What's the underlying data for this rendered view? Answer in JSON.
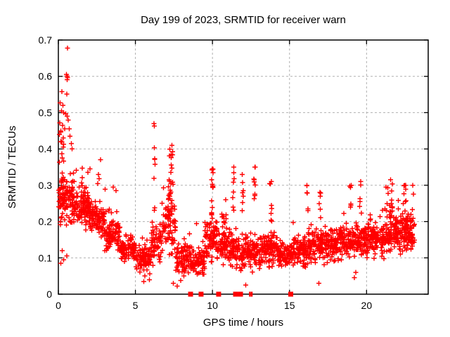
{
  "chart_data": {
    "type": "scatter",
    "title": "Day 199 of 2023, SRMTID for receiver warn",
    "xlabel": "GPS time / hours",
    "ylabel": "SRMTID / TECUs",
    "xlim": [
      0,
      24
    ],
    "ylim": [
      0,
      0.7
    ],
    "xticks": [
      0,
      5,
      10,
      15,
      20
    ],
    "yticks": [
      0,
      0.1,
      0.2,
      0.3,
      0.4,
      0.5,
      0.6,
      0.7
    ],
    "grid": true,
    "legend_position": "none",
    "marker": {
      "shape": "plus",
      "size": 7,
      "stroke_width": 1.4
    },
    "colors": {
      "marker": "#ff0000",
      "grid": "#b0b0b0",
      "axis": "#000000",
      "background": "#ffffff"
    },
    "seed": 42,
    "band_segments": [
      [
        0.0,
        0.5,
        55,
        0.26,
        0.1,
        0.15,
        0.1
      ],
      [
        0.5,
        1.0,
        55,
        0.25,
        0.1,
        0.12,
        0.08
      ],
      [
        1.0,
        2.0,
        110,
        0.24,
        0.07,
        0.11,
        0.07
      ],
      [
        2.0,
        3.0,
        100,
        0.21,
        0.06,
        0.12,
        0.06
      ],
      [
        3.0,
        4.0,
        95,
        0.165,
        0.055,
        0.1,
        0.05
      ],
      [
        4.0,
        5.0,
        90,
        0.125,
        0.045,
        0.06,
        0.04
      ],
      [
        5.0,
        6.0,
        85,
        0.095,
        0.05,
        0.05,
        0.04
      ],
      [
        6.0,
        6.7,
        60,
        0.14,
        0.09,
        0.05,
        0.05
      ],
      [
        6.7,
        7.6,
        80,
        0.19,
        0.11,
        0.04,
        0.05
      ],
      [
        7.6,
        8.5,
        80,
        0.1,
        0.055,
        0.05,
        0.04
      ],
      [
        8.5,
        9.5,
        90,
        0.09,
        0.05,
        0.08,
        0.04
      ],
      [
        9.5,
        10.3,
        75,
        0.15,
        0.08,
        0.05,
        0.05
      ],
      [
        10.3,
        11.3,
        95,
        0.13,
        0.07,
        0.05,
        0.04
      ],
      [
        11.3,
        12.3,
        95,
        0.12,
        0.065,
        0.07,
        0.05
      ],
      [
        12.3,
        13.2,
        85,
        0.115,
        0.06,
        0.07,
        0.05
      ],
      [
        13.2,
        14.2,
        95,
        0.125,
        0.065,
        0.06,
        0.05
      ],
      [
        14.2,
        15.2,
        90,
        0.11,
        0.05,
        0.05,
        0.04
      ],
      [
        15.2,
        16.2,
        90,
        0.12,
        0.055,
        0.06,
        0.05
      ],
      [
        16.2,
        17.2,
        95,
        0.135,
        0.065,
        0.06,
        0.05
      ],
      [
        17.2,
        18.2,
        95,
        0.135,
        0.065,
        0.06,
        0.05
      ],
      [
        18.2,
        19.2,
        95,
        0.145,
        0.065,
        0.07,
        0.05
      ],
      [
        19.2,
        20.2,
        95,
        0.15,
        0.065,
        0.07,
        0.05
      ],
      [
        20.2,
        21.2,
        100,
        0.155,
        0.065,
        0.07,
        0.06
      ],
      [
        21.2,
        22.2,
        105,
        0.165,
        0.07,
        0.08,
        0.07
      ],
      [
        22.2,
        23.1,
        100,
        0.165,
        0.07,
        0.08,
        0.06
      ]
    ],
    "spike_columns": [
      [
        0.25,
        0.1,
        0.3,
        0.45,
        12
      ],
      [
        6.25,
        0.05,
        0.23,
        0.47,
        9
      ],
      [
        7.3,
        0.15,
        0.26,
        0.41,
        22
      ],
      [
        10.0,
        0.06,
        0.2,
        0.345,
        14
      ],
      [
        10.75,
        0.15,
        0.18,
        0.26,
        10
      ],
      [
        11.35,
        0.05,
        0.22,
        0.35,
        8
      ],
      [
        11.95,
        0.05,
        0.22,
        0.33,
        7
      ],
      [
        12.73,
        0.05,
        0.22,
        0.35,
        9
      ],
      [
        13.78,
        0.07,
        0.2,
        0.31,
        8
      ],
      [
        16.15,
        0.05,
        0.2,
        0.3,
        6
      ],
      [
        16.95,
        0.08,
        0.19,
        0.28,
        6
      ],
      [
        18.95,
        0.06,
        0.21,
        0.3,
        6
      ],
      [
        19.6,
        0.05,
        0.21,
        0.31,
        5
      ],
      [
        21.5,
        0.25,
        0.21,
        0.315,
        16
      ],
      [
        22.4,
        0.2,
        0.2,
        0.3,
        12
      ],
      [
        22.95,
        0.1,
        0.2,
        0.3,
        6
      ]
    ],
    "extreme_points": [
      [
        0.59,
        0.678
      ],
      [
        0.52,
        0.605
      ],
      [
        0.56,
        0.6
      ],
      [
        0.6,
        0.597
      ],
      [
        0.57,
        0.591
      ],
      [
        0.23,
        0.558
      ],
      [
        0.55,
        0.551
      ],
      [
        0.12,
        0.527
      ],
      [
        0.3,
        0.52
      ],
      [
        0.2,
        0.505
      ],
      [
        0.35,
        0.5
      ],
      [
        0.48,
        0.497
      ],
      [
        0.56,
        0.49
      ],
      [
        0.1,
        0.472
      ],
      [
        0.28,
        0.465
      ],
      [
        0.42,
        0.455
      ],
      [
        0.15,
        0.447
      ],
      [
        0.06,
        0.44
      ],
      [
        0.33,
        0.43
      ],
      [
        0.7,
        0.455
      ],
      [
        0.75,
        0.435
      ],
      [
        0.85,
        0.415
      ],
      [
        0.9,
        0.4
      ],
      [
        0.65,
        0.48
      ],
      [
        1.55,
        0.347
      ],
      [
        2.05,
        0.345
      ],
      [
        2.73,
        0.37
      ],
      [
        2.6,
        0.33
      ],
      [
        2.65,
        0.318
      ],
      [
        2.55,
        0.305
      ],
      [
        3.55,
        0.295
      ],
      [
        3.75,
        0.285
      ]
    ],
    "low_points": [
      [
        5.55,
        0.035
      ],
      [
        5.9,
        0.04
      ],
      [
        7.45,
        0.03
      ],
      [
        7.7,
        0.022
      ],
      [
        7.95,
        0.038
      ],
      [
        8.15,
        0.05
      ],
      [
        9.45,
        0.055
      ],
      [
        12.15,
        0.025
      ],
      [
        19.2,
        0.045
      ],
      [
        19.3,
        0.06
      ],
      [
        16.9,
        0.03
      ],
      [
        0.15,
        0.085
      ],
      [
        0.35,
        0.095
      ],
      [
        0.55,
        0.105
      ],
      [
        0.25,
        0.12
      ]
    ],
    "zero_flag_markers": {
      "shape": "filled-square",
      "positions": [
        8.58,
        9.26,
        10.4,
        11.5,
        11.82,
        15.08
      ],
      "narrow_positions": [
        12.43,
        12.55
      ]
    }
  }
}
